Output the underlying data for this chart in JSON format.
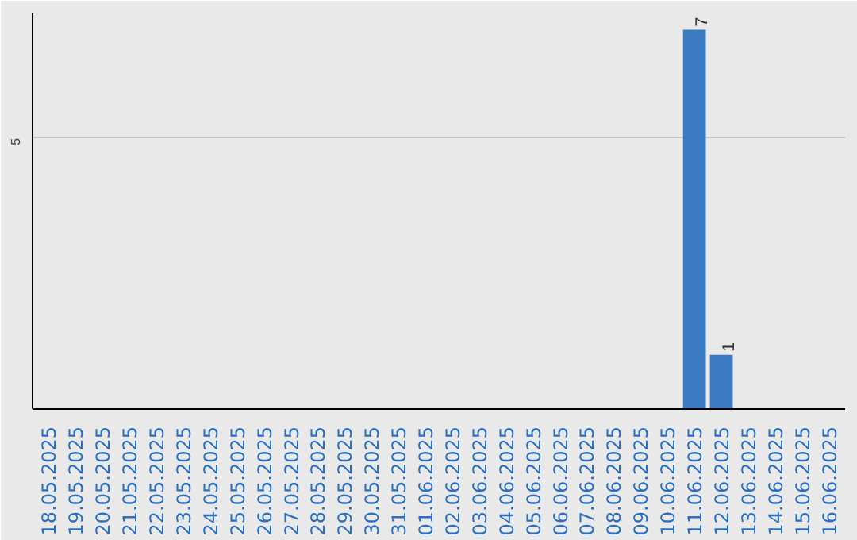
{
  "chart_data": {
    "type": "bar",
    "categories": [
      "18.05.2025",
      "19.05.2025",
      "20.05.2025",
      "21.05.2025",
      "22.05.2025",
      "23.05.2025",
      "24.05.2025",
      "25.05.2025",
      "26.05.2025",
      "27.05.2025",
      "28.05.2025",
      "29.05.2025",
      "30.05.2025",
      "31.05.2025",
      "01.06.2025",
      "02.06.2025",
      "03.06.2025",
      "04.06.2025",
      "05.06.2025",
      "06.06.2025",
      "07.06.2025",
      "08.06.2025",
      "09.06.2025",
      "10.06.2025",
      "11.06.2025",
      "12.06.2025",
      "13.06.2025",
      "14.06.2025",
      "15.06.2025",
      "16.06.2025"
    ],
    "values": [
      null,
      null,
      null,
      null,
      null,
      null,
      null,
      null,
      null,
      null,
      null,
      null,
      null,
      null,
      null,
      null,
      null,
      null,
      null,
      null,
      null,
      null,
      null,
      null,
      7,
      1,
      null,
      null,
      null,
      null
    ],
    "data_labels": true,
    "color": "#3a7bc1",
    "ylim": [
      0,
      7.3
    ],
    "yticks": [
      5
    ],
    "grid": "y"
  }
}
